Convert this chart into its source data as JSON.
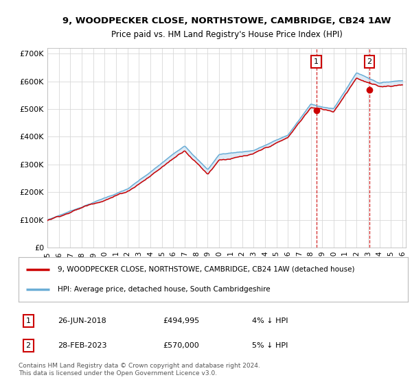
{
  "title_line1": "9, WOODPECKER CLOSE, NORTHSTOWE, CAMBRIDGE, CB24 1AW",
  "title_line2": "Price paid vs. HM Land Registry's House Price Index (HPI)",
  "legend_line1": "9, WOODPECKER CLOSE, NORTHSTOWE, CAMBRIDGE, CB24 1AW (detached house)",
  "legend_line2": "HPI: Average price, detached house, South Cambridgeshire",
  "annotation1": {
    "label": "1",
    "date": "26-JUN-2018",
    "price": 494995,
    "note": "4% ↓ HPI"
  },
  "annotation2": {
    "label": "2",
    "date": "28-FEB-2023",
    "price": 570000,
    "note": "5% ↓ HPI"
  },
  "footer": "Contains HM Land Registry data © Crown copyright and database right 2024.\nThis data is licensed under the Open Government Licence v3.0.",
  "hpi_color": "#6baed6",
  "price_color": "#cc0000",
  "annotation_color": "#cc0000",
  "background_color": "#ffffff",
  "grid_color": "#d8d8d8",
  "fill_color": "#c6dbef",
  "ylim": [
    0,
    720000
  ],
  "yticks": [
    0,
    100000,
    200000,
    300000,
    400000,
    500000,
    600000,
    700000
  ],
  "ytick_labels": [
    "£0",
    "£100K",
    "£200K",
    "£300K",
    "£400K",
    "£500K",
    "£600K",
    "£700K"
  ],
  "sale1_year": 2018.49,
  "sale1_price": 494995,
  "sale2_year": 2023.12,
  "sale2_price": 570000
}
